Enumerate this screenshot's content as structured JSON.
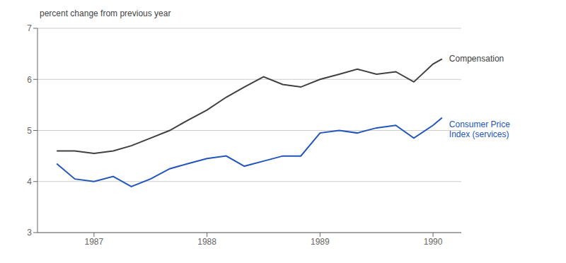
{
  "chart_data": {
    "type": "line",
    "title": "percent change from previous year",
    "x": [
      1986.67,
      1986.83,
      1987.0,
      1987.17,
      1987.33,
      1987.5,
      1987.67,
      1987.83,
      1988.0,
      1988.17,
      1988.33,
      1988.5,
      1988.67,
      1988.83,
      1989.0,
      1989.17,
      1989.33,
      1989.5,
      1989.67,
      1989.83,
      1990.0,
      1990.08
    ],
    "series": [
      {
        "name": "Compensation",
        "color": "#404040",
        "values": [
          4.6,
          4.6,
          4.55,
          4.6,
          4.7,
          4.85,
          5.0,
          5.2,
          5.4,
          5.65,
          5.85,
          6.05,
          5.9,
          5.85,
          6.0,
          6.1,
          6.2,
          6.1,
          6.15,
          5.95,
          6.3,
          6.4
        ]
      },
      {
        "name": "Consumer Price\nIndex (services)",
        "color": "#2255bb",
        "values": [
          4.35,
          4.05,
          4.0,
          4.1,
          3.9,
          4.05,
          4.25,
          4.35,
          4.45,
          4.5,
          4.3,
          4.4,
          4.5,
          4.5,
          4.95,
          5.0,
          4.95,
          5.05,
          5.1,
          4.85,
          5.1,
          5.25
        ]
      }
    ],
    "xlim": [
      1986.5,
      1990.25
    ],
    "xticks": [
      1987.0,
      1988.0,
      1989.0,
      1990.0
    ],
    "ylim": [
      3,
      7
    ],
    "yticks": [
      3,
      4,
      5,
      6,
      7
    ],
    "grid": true
  }
}
